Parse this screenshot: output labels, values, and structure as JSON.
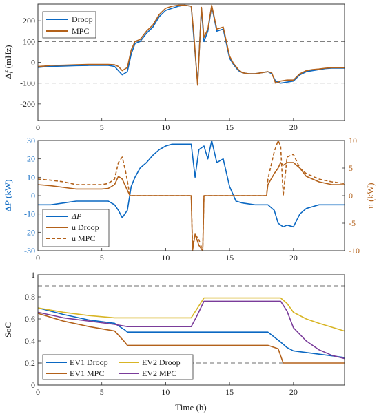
{
  "colors": {
    "droop": "#0b68c2",
    "mpc": "#b3611a",
    "ev2droop": "#d8b525",
    "ev2mpc": "#7a3c9a",
    "ref": "#6e6e6e"
  },
  "chart_data": [
    {
      "id": "freq",
      "type": "line",
      "ylabel": "Δf (mHz)",
      "ylabel_pre": "Δ",
      "ylabel_var": "f",
      "ylabel_unit": "(mHz)",
      "xlim": [
        0,
        24
      ],
      "ylim": [
        -280,
        280
      ],
      "xticks": [
        "0",
        "5",
        "10",
        "15",
        "20"
      ],
      "yticks": [
        "-200",
        "-100",
        "0",
        "100",
        "200"
      ],
      "ref_lines": [
        100,
        -100
      ],
      "legend": [
        "Droop",
        "MPC"
      ],
      "series": [
        {
          "name": "Droop",
          "color_key": "droop",
          "dash": false,
          "x": [
            0,
            0.5,
            1,
            2,
            3,
            4,
            5,
            5.5,
            6,
            6.3,
            6.6,
            7,
            7.3,
            7.6,
            8,
            8.5,
            9,
            9.5,
            10,
            10.5,
            11,
            11.5,
            12,
            12.2,
            12.5,
            12.8,
            13,
            13.3,
            13.6,
            14,
            14.5,
            15,
            15.3,
            15.7,
            16,
            16.5,
            17,
            17.5,
            18,
            18.3,
            18.6,
            19,
            19.5,
            20,
            20.5,
            21,
            21.5,
            22,
            22.5,
            23,
            23.5,
            24
          ],
          "y": [
            -25,
            -22,
            -20,
            -18,
            -16,
            -15,
            -15,
            -15,
            -20,
            -40,
            -60,
            -45,
            40,
            90,
            100,
            140,
            170,
            220,
            250,
            260,
            270,
            275,
            270,
            120,
            -100,
            260,
            100,
            150,
            270,
            150,
            160,
            20,
            -10,
            -40,
            -50,
            -55,
            -55,
            -50,
            -45,
            -55,
            -90,
            -100,
            -95,
            -90,
            -60,
            -45,
            -40,
            -35,
            -30,
            -28,
            -28,
            -28
          ]
        },
        {
          "name": "MPC",
          "color_key": "mpc",
          "dash": false,
          "x": [
            0,
            0.5,
            1,
            2,
            3,
            4,
            5,
            5.5,
            6,
            6.3,
            6.6,
            7,
            7.3,
            7.6,
            8,
            8.5,
            9,
            9.5,
            10,
            10.5,
            11,
            11.5,
            12,
            12.2,
            12.5,
            12.8,
            13,
            13.3,
            13.6,
            14,
            14.5,
            15,
            15.3,
            15.7,
            16,
            16.5,
            17,
            17.5,
            18,
            18.3,
            18.6,
            19,
            19.5,
            20,
            20.5,
            21,
            21.5,
            22,
            22.5,
            23,
            23.5,
            24
          ],
          "y": [
            -20,
            -18,
            -15,
            -14,
            -12,
            -10,
            -10,
            -10,
            -12,
            -20,
            -40,
            -25,
            60,
            100,
            110,
            150,
            180,
            230,
            260,
            270,
            275,
            275,
            270,
            140,
            -110,
            265,
            120,
            160,
            275,
            160,
            170,
            30,
            -5,
            -35,
            -50,
            -55,
            -55,
            -50,
            -45,
            -50,
            -100,
            -90,
            -85,
            -85,
            -55,
            -40,
            -35,
            -32,
            -28,
            -26,
            -26,
            -26
          ]
        }
      ]
    },
    {
      "id": "power",
      "type": "line",
      "ylabel_left": "ΔP (kW)",
      "ylabel_left_pre": "Δ",
      "ylabel_left_var": "P",
      "ylabel_left_unit": "(kW)",
      "ylabel_right": "u (kW)",
      "xlim": [
        0,
        24
      ],
      "ylim_left": [
        -30,
        30
      ],
      "ylim_right": [
        -10,
        10
      ],
      "xticks": [
        "0",
        "5",
        "10",
        "15",
        "20"
      ],
      "yticks_left": [
        "-30",
        "-20",
        "-10",
        "0",
        "10",
        "20",
        "30"
      ],
      "yticks_right": [
        "-10",
        "-5",
        "0",
        "5",
        "10"
      ],
      "legend": [
        "ΔP",
        "u Droop",
        "u MPC"
      ],
      "series": [
        {
          "name": "ΔP",
          "color_key": "droop",
          "dash": false,
          "axis": "left",
          "x": [
            0,
            1,
            2,
            3,
            4,
            5,
            5.5,
            6,
            6.3,
            6.6,
            7,
            7.3,
            7.6,
            8,
            8.5,
            9,
            9.5,
            10,
            10.5,
            11,
            11.5,
            12,
            12.3,
            12.6,
            13,
            13.3,
            13.6,
            14,
            14.5,
            15,
            15.5,
            16,
            17,
            18,
            18.5,
            18.8,
            19.2,
            19.5,
            20,
            20.5,
            21,
            21.5,
            22,
            23,
            24
          ],
          "y": [
            -5,
            -5,
            -4,
            -3,
            -3,
            -3,
            -3,
            -5,
            -8,
            -12,
            -8,
            5,
            10,
            15,
            18,
            22,
            25,
            27,
            28,
            28,
            28,
            28,
            10,
            25,
            27,
            20,
            30,
            18,
            20,
            5,
            -3,
            -4,
            -5,
            -5,
            -8,
            -15,
            -17,
            -16,
            -17,
            -10,
            -7,
            -6,
            -5,
            -5,
            -5
          ]
        },
        {
          "name": "u Droop",
          "color_key": "mpc",
          "dash": false,
          "axis": "right",
          "x": [
            0,
            1,
            2,
            3,
            4,
            5,
            5.5,
            6,
            6.3,
            6.6,
            6.9,
            7.2,
            7.5,
            8,
            9,
            10,
            11,
            12,
            12.1,
            12.3,
            12.6,
            12.9,
            13,
            13.5,
            14,
            15,
            16,
            17,
            17.9,
            18,
            18.5,
            18.8,
            19,
            19.2,
            19.5,
            20,
            20.5,
            21,
            22,
            23,
            24
          ],
          "y": [
            2,
            1.8,
            1.5,
            1.2,
            1.2,
            1.2,
            1.3,
            2,
            3.5,
            3,
            1.5,
            0,
            0,
            0,
            0,
            0,
            0,
            0,
            -10,
            -7,
            -9,
            -10,
            0,
            0,
            0,
            0,
            0,
            0,
            0,
            2,
            4,
            5,
            6,
            5.5,
            6,
            6,
            5,
            3.5,
            2.5,
            2,
            2
          ]
        },
        {
          "name": "u MPC",
          "color_key": "mpc",
          "dash": true,
          "axis": "right",
          "x": [
            0,
            1,
            2,
            3,
            4,
            5,
            5.5,
            6,
            6.3,
            6.6,
            6.9,
            7.2,
            7.5,
            8,
            9,
            10,
            11,
            12,
            12.1,
            12.3,
            12.6,
            12.9,
            13,
            13.5,
            14,
            15,
            16,
            17,
            17.9,
            18,
            18.5,
            18.8,
            19,
            19.2,
            19.5,
            20,
            20.5,
            21,
            22,
            23,
            24
          ],
          "y": [
            3,
            2.8,
            2.5,
            2,
            2,
            2,
            2.2,
            3,
            6,
            7,
            4,
            0,
            0,
            0,
            0,
            0,
            0,
            0,
            -9,
            -7,
            -8,
            -10,
            0,
            0,
            0,
            0,
            0,
            0,
            0,
            3,
            8,
            10,
            9,
            0,
            7,
            7.5,
            5,
            4,
            3,
            2.5,
            2.2
          ]
        }
      ]
    },
    {
      "id": "soc",
      "type": "line",
      "ylabel": "SoC",
      "xlabel": "Time (h)",
      "xlim": [
        0,
        24
      ],
      "ylim": [
        0,
        1
      ],
      "xticks": [
        "0",
        "5",
        "10",
        "15",
        "20"
      ],
      "yticks": [
        "0",
        "0.2",
        "0.4",
        "0.6",
        "0.8",
        "1"
      ],
      "ref_lines": [
        0.9,
        0.2
      ],
      "legend": [
        "EV1 Droop",
        "EV1 MPC",
        "EV2 Droop",
        "EV2 MPC"
      ],
      "series": [
        {
          "name": "EV1 Droop",
          "color_key": "droop",
          "dash": false,
          "x": [
            0,
            2,
            4,
            6,
            6.8,
            7,
            10,
            12,
            13,
            15,
            18,
            19,
            19.5,
            20,
            22,
            24
          ],
          "y": [
            0.7,
            0.64,
            0.59,
            0.56,
            0.5,
            0.48,
            0.48,
            0.48,
            0.48,
            0.48,
            0.48,
            0.39,
            0.34,
            0.31,
            0.28,
            0.25
          ]
        },
        {
          "name": "EV1 MPC",
          "color_key": "mpc",
          "dash": false,
          "x": [
            0,
            2,
            4,
            6,
            6.8,
            7,
            10,
            12,
            13,
            15,
            18,
            18.8,
            19.2,
            20,
            22,
            24
          ],
          "y": [
            0.65,
            0.58,
            0.53,
            0.49,
            0.39,
            0.36,
            0.36,
            0.36,
            0.36,
            0.36,
            0.36,
            0.33,
            0.2,
            0.2,
            0.2,
            0.2
          ]
        },
        {
          "name": "EV2 Droop",
          "color_key": "ev2droop",
          "dash": false,
          "x": [
            0,
            2,
            4,
            6,
            8,
            10,
            12,
            12.5,
            13,
            15,
            18,
            19,
            19.5,
            20,
            21,
            22,
            24
          ],
          "y": [
            0.7,
            0.66,
            0.63,
            0.61,
            0.61,
            0.61,
            0.61,
            0.7,
            0.79,
            0.79,
            0.79,
            0.79,
            0.74,
            0.66,
            0.6,
            0.56,
            0.49
          ]
        },
        {
          "name": "EV2 MPC",
          "color_key": "ev2mpc",
          "dash": false,
          "x": [
            0,
            2,
            4,
            6,
            7,
            8,
            10,
            12,
            12.5,
            13,
            15,
            18,
            19,
            19.5,
            20,
            21,
            22,
            23,
            24
          ],
          "y": [
            0.66,
            0.61,
            0.58,
            0.55,
            0.53,
            0.53,
            0.53,
            0.53,
            0.64,
            0.76,
            0.76,
            0.76,
            0.76,
            0.67,
            0.52,
            0.4,
            0.32,
            0.27,
            0.24
          ]
        }
      ]
    }
  ]
}
